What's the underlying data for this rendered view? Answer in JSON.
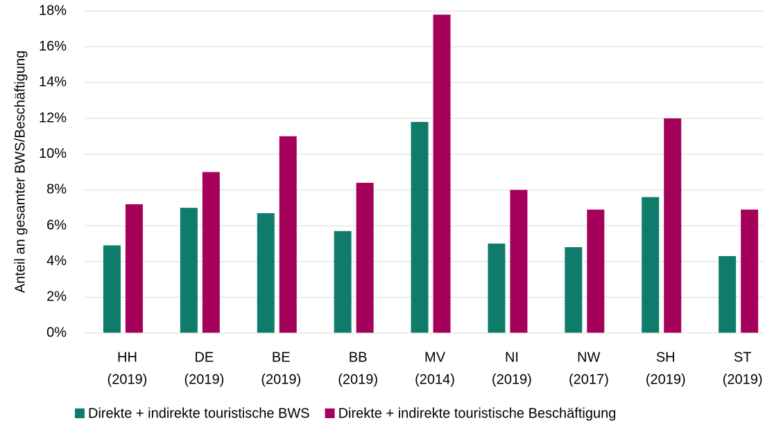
{
  "chart_data": {
    "type": "bar",
    "y_axis_label": "Anteil an gesamter BWS/Beschäftigung",
    "categories": [
      [
        "HH",
        "(2019)"
      ],
      [
        "DE",
        "(2019)"
      ],
      [
        "BE",
        "(2019)"
      ],
      [
        "BB",
        "(2019)"
      ],
      [
        "MV",
        "(2014)"
      ],
      [
        "NI",
        "(2019)"
      ],
      [
        "NW",
        "(2017)"
      ],
      [
        "SH",
        "(2019)"
      ],
      [
        "ST",
        "(2019)"
      ]
    ],
    "series": [
      {
        "name": "Direkte + indirekte touristische BWS",
        "color": "#0e7b6b",
        "values": [
          4.9,
          7.0,
          6.7,
          5.7,
          11.8,
          5.0,
          4.8,
          7.6,
          4.3
        ]
      },
      {
        "name": "Direkte + indirekte touristische Beschäftigung",
        "color": "#a5005a",
        "values": [
          7.2,
          9.0,
          11.0,
          8.4,
          17.8,
          8.0,
          6.9,
          12.0,
          6.9
        ]
      }
    ],
    "ylim": [
      0,
      18
    ],
    "yticks": [
      {
        "value": 0,
        "label": "0%"
      },
      {
        "value": 2,
        "label": "2%"
      },
      {
        "value": 4,
        "label": "4%"
      },
      {
        "value": 6,
        "label": "6%"
      },
      {
        "value": 8,
        "label": "8%"
      },
      {
        "value": 10,
        "label": "10%"
      },
      {
        "value": 12,
        "label": "12%"
      },
      {
        "value": 14,
        "label": "14%"
      },
      {
        "value": 16,
        "label": "16%"
      },
      {
        "value": 18,
        "label": "18%"
      }
    ],
    "grid": true,
    "legend": "bottom"
  }
}
